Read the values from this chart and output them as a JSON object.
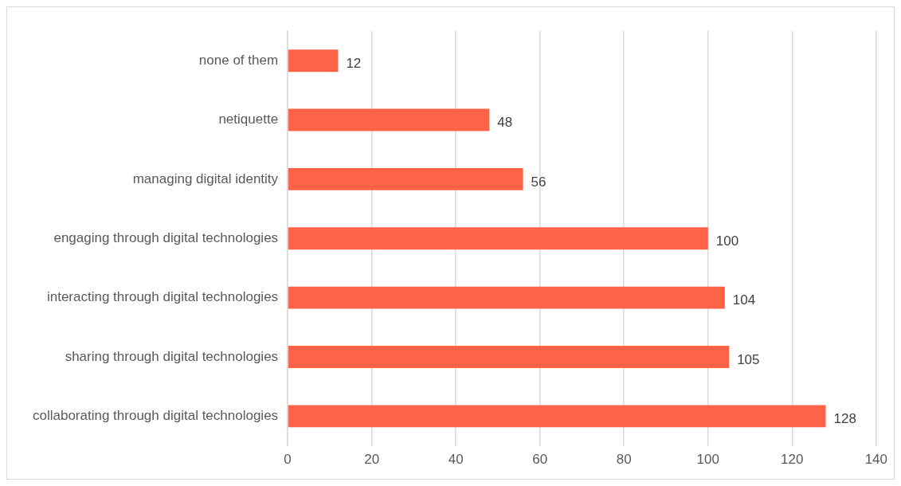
{
  "chart_data": {
    "type": "bar",
    "orientation": "horizontal",
    "categories": [
      "none of them",
      "netiquette",
      "managing digital identity",
      "engaging through digital technologies",
      "interacting through digital technologies",
      "sharing through digital technologies",
      "collaborating through digital technologies"
    ],
    "values": [
      12,
      48,
      56,
      100,
      104,
      105,
      128
    ],
    "color": "#ff6347",
    "xlim": [
      0,
      140
    ],
    "xticks": [
      0,
      20,
      40,
      60,
      80,
      100,
      120,
      140
    ],
    "grid": "x",
    "legend": false,
    "data_labels": true
  }
}
